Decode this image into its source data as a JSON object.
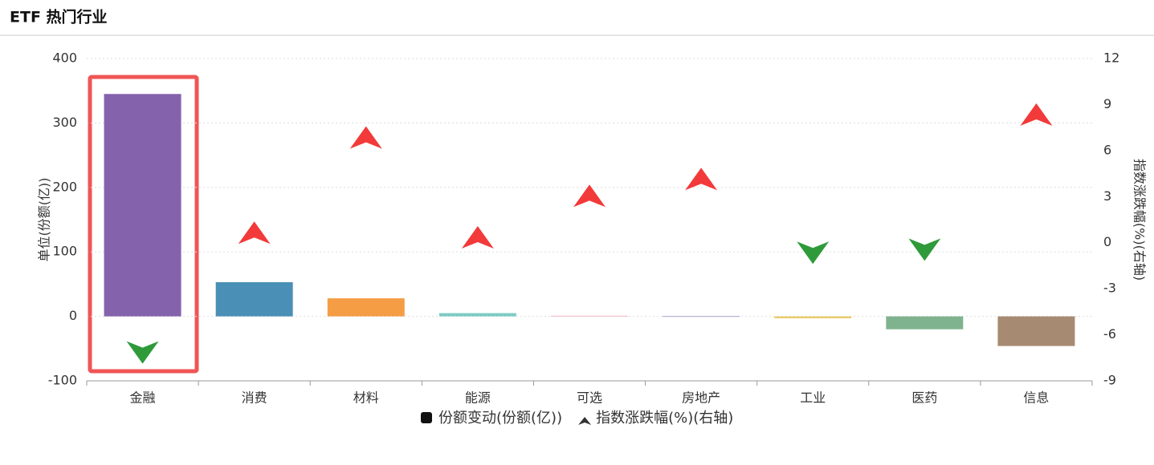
{
  "chart_data": {
    "type": "bar-marker",
    "title": "ETF 热门行业",
    "categories": [
      "金融",
      "消费",
      "材料",
      "能源",
      "可选",
      "房地产",
      "工业",
      "医药",
      "信息"
    ],
    "y_label": "单位(份额(亿))",
    "y2_label": "指数涨跌幅(%)(右轴)",
    "ylim": [
      -100,
      400
    ],
    "yticks": [
      -100,
      0,
      100,
      200,
      300,
      400
    ],
    "y2lim": [
      -9,
      12
    ],
    "y2ticks": [
      -9,
      -6,
      -3,
      0,
      3,
      6,
      9,
      12
    ],
    "grid": true,
    "series": [
      {
        "name": "份额变动(份额(亿))",
        "type": "bar",
        "colors": [
          "#8562ac",
          "#4a8fb5",
          "#f49d45",
          "#7dcbc4",
          "#f5b5c5",
          "#a9a3cf",
          "#e8cd6a",
          "#7fb38f",
          "#a68a72"
        ],
        "values": [
          345,
          53,
          28,
          5,
          1,
          0.5,
          -3,
          -20,
          -46
        ]
      },
      {
        "name": "指数涨跌幅(%)(右轴)",
        "type": "marker",
        "axis": "y2",
        "up_color": "#f23a3a",
        "down_color": "#2e9a3a",
        "values": [
          -7.1,
          0.6,
          6.8,
          0.3,
          3.0,
          4.1,
          -0.6,
          -0.4,
          8.3
        ]
      }
    ]
  }
}
